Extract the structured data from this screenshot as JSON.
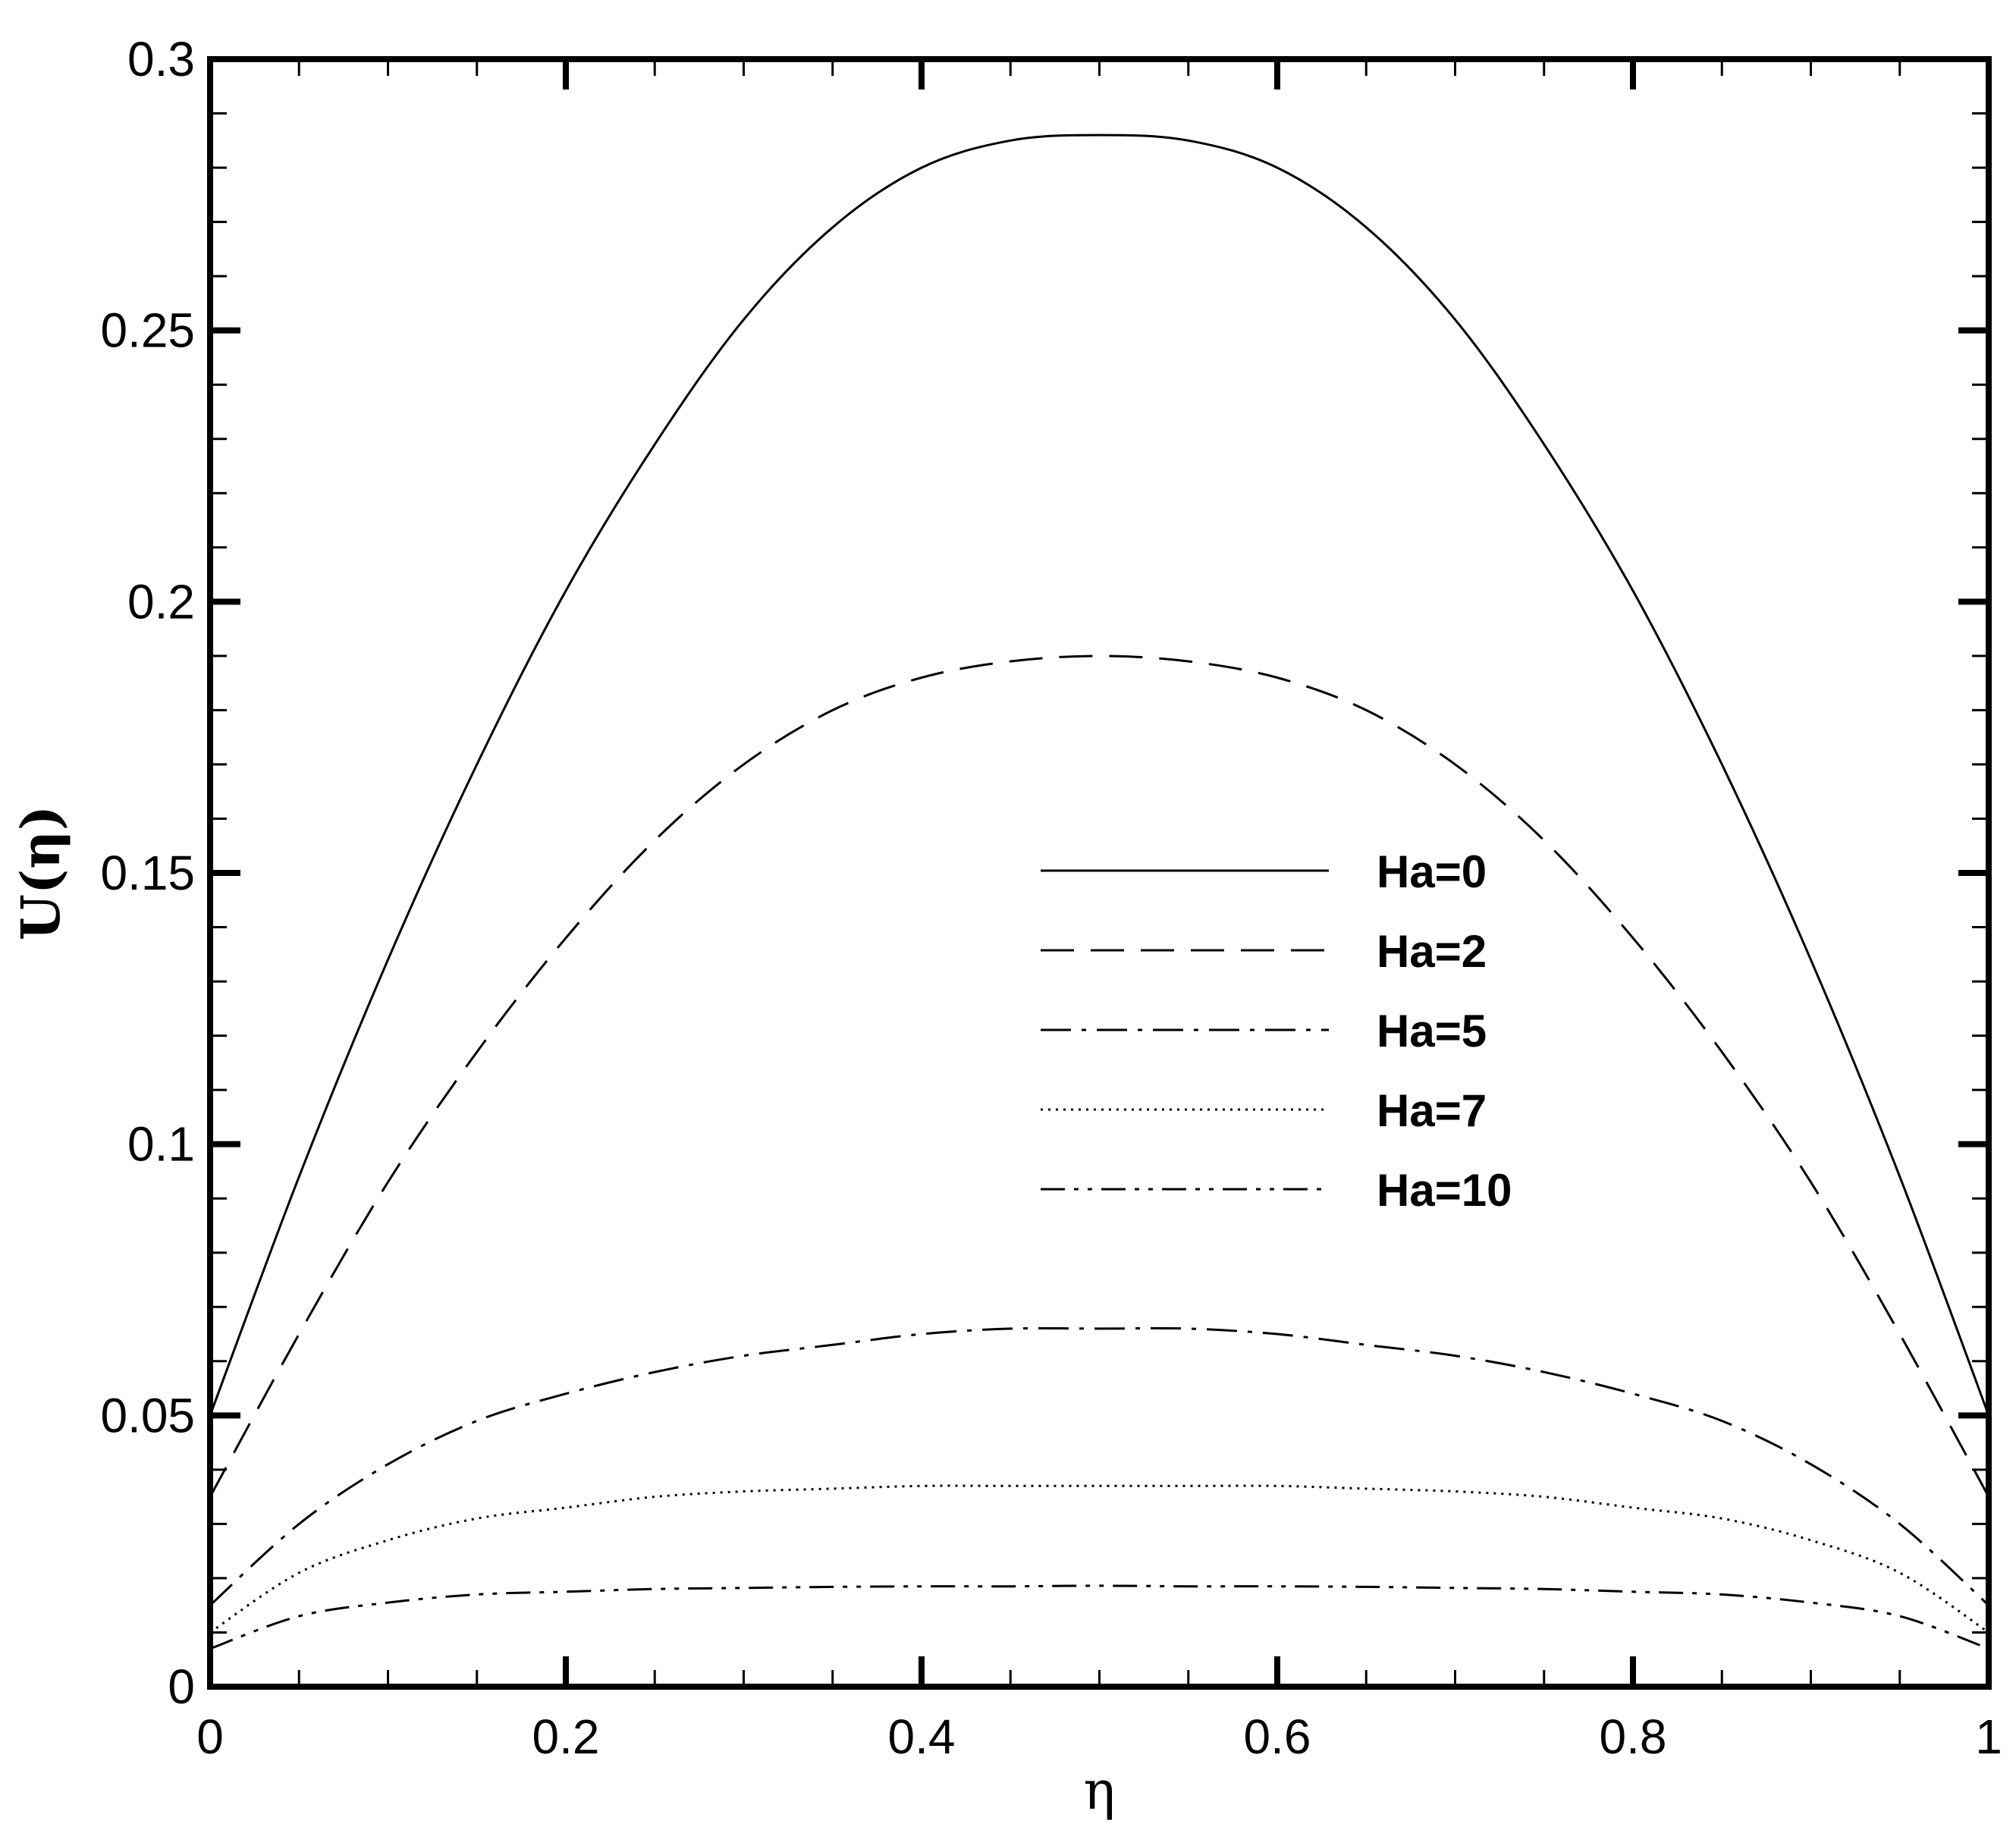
{
  "chart_data": {
    "type": "line",
    "title": "",
    "xlabel": "η",
    "ylabel": "U(η)",
    "xlim": [
      0,
      1
    ],
    "ylim": [
      0,
      0.3
    ],
    "x_ticks": [
      0,
      0.2,
      0.4,
      0.6,
      0.8,
      1
    ],
    "x_tick_labels": [
      "0",
      "0.2",
      "0.4",
      "0.6",
      "0.8",
      "1"
    ],
    "y_ticks": [
      0,
      0.05,
      0.1,
      0.15,
      0.2,
      0.25,
      0.3
    ],
    "y_tick_labels": [
      "0",
      "0.05",
      "0.1",
      "0.15",
      "0.2",
      "0.25",
      "0.3"
    ],
    "x": [
      0,
      0.05,
      0.1,
      0.15,
      0.2,
      0.25,
      0.3,
      0.35,
      0.4,
      0.45,
      0.5,
      0.55,
      0.6,
      0.65,
      0.7,
      0.75,
      0.8,
      0.85,
      0.9,
      0.95,
      1
    ],
    "legend_position": "center-right",
    "series": [
      {
        "name": "Ha=0",
        "style": "solid",
        "values": [
          0.05,
          0.094,
          0.134,
          0.17,
          0.202,
          0.229,
          0.252,
          0.269,
          0.28,
          0.285,
          0.286,
          0.285,
          0.28,
          0.269,
          0.252,
          0.229,
          0.202,
          0.17,
          0.134,
          0.094,
          0.05
        ]
      },
      {
        "name": "Ha=2",
        "style": "dashed",
        "values": [
          0.035,
          0.065,
          0.093,
          0.117,
          0.138,
          0.156,
          0.17,
          0.18,
          0.186,
          0.189,
          0.19,
          0.189,
          0.186,
          0.18,
          0.17,
          0.156,
          0.138,
          0.117,
          0.093,
          0.065,
          0.035
        ]
      },
      {
        "name": "Ha=5",
        "style": "dashdot",
        "values": [
          0.015,
          0.03,
          0.041,
          0.049,
          0.054,
          0.058,
          0.061,
          0.063,
          0.065,
          0.066,
          0.066,
          0.066,
          0.065,
          0.063,
          0.061,
          0.058,
          0.054,
          0.049,
          0.041,
          0.03,
          0.015
        ]
      },
      {
        "name": "Ha=7",
        "style": "dotted",
        "values": [
          0.01,
          0.021,
          0.027,
          0.031,
          0.033,
          0.035,
          0.036,
          0.0365,
          0.037,
          0.037,
          0.037,
          0.037,
          0.037,
          0.0365,
          0.036,
          0.035,
          0.033,
          0.031,
          0.027,
          0.021,
          0.01
        ]
      },
      {
        "name": "Ha=10",
        "style": "dashdotdot",
        "values": [
          0.007,
          0.013,
          0.0155,
          0.017,
          0.0175,
          0.018,
          0.0182,
          0.0184,
          0.0185,
          0.0185,
          0.0186,
          0.0185,
          0.0185,
          0.0184,
          0.0182,
          0.018,
          0.0175,
          0.017,
          0.0155,
          0.013,
          0.007
        ]
      }
    ]
  }
}
